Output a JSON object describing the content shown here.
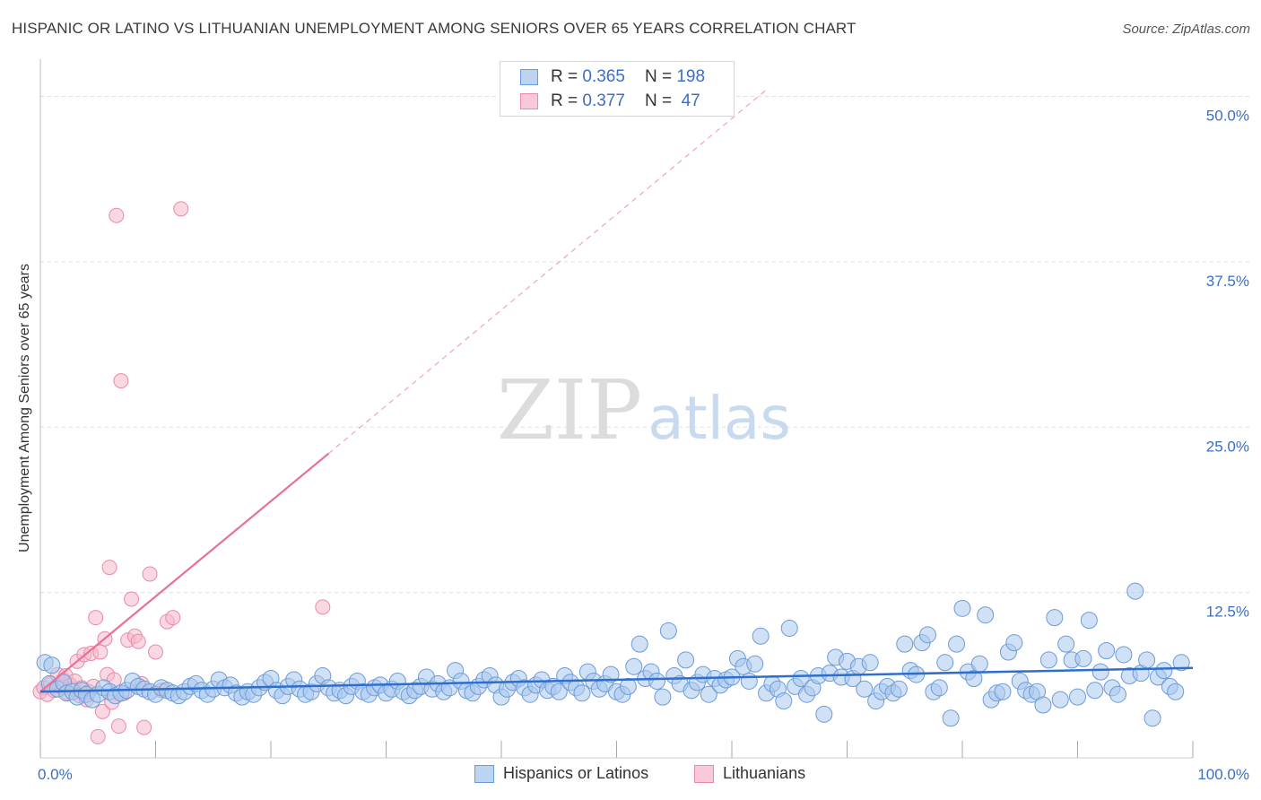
{
  "header": {
    "title": "HISPANIC OR LATINO VS LITHUANIAN UNEMPLOYMENT AMONG SENIORS OVER 65 YEARS CORRELATION CHART",
    "source": "Source: ZipAtlas.com"
  },
  "watermark": {
    "zip": "ZIP",
    "atlas": "atlas"
  },
  "legend_box": {
    "series1": {
      "r_label": "R =",
      "r_value": "0.365",
      "n_label": "N =",
      "n_value": "198"
    },
    "series2": {
      "r_label": "R =",
      "r_value": "0.377",
      "n_label": "N =",
      "n_value": "47"
    }
  },
  "bottom_legend": {
    "series1": "Hispanics or Latinos",
    "series2": "Lithuanians"
  },
  "colors": {
    "blue_fill": "#a9c8ef",
    "blue_stroke": "#6b9bd8",
    "blue_line": "#2f6fcc",
    "pink_fill": "#f6b8cb",
    "pink_stroke": "#e98aa8",
    "pink_line": "#e8709a",
    "grid": "#dddddd",
    "tick_label": "#3a6fc4"
  },
  "chart_data": {
    "type": "scatter",
    "title": "HISPANIC OR LATINO VS LITHUANIAN UNEMPLOYMENT AMONG SENIORS OVER 65 YEARS CORRELATION CHART",
    "xlabel": "",
    "ylabel": "Unemployment Among Seniors over 65 years",
    "xlim": [
      0,
      100
    ],
    "ylim": [
      0,
      52
    ],
    "x_tick_labels": [
      "0.0%",
      "100.0%"
    ],
    "y_ticks": [
      12.5,
      25.0,
      37.5,
      50.0
    ],
    "y_tick_labels": [
      "12.5%",
      "25.0%",
      "37.5%",
      "50.0%"
    ],
    "legend_position": "top-center",
    "series": [
      {
        "name": "Hispanics or Latinos",
        "R": 0.365,
        "N": 198,
        "trend": {
          "x": [
            0,
            100
          ],
          "y": [
            5.0,
            6.8
          ],
          "style": "solid"
        },
        "points": [
          [
            0.4,
            7.2
          ],
          [
            0.8,
            5.6
          ],
          [
            1.0,
            7.0
          ],
          [
            1.5,
            5.2
          ],
          [
            2.0,
            5.7
          ],
          [
            2.3,
            4.9
          ],
          [
            2.8,
            5.0
          ],
          [
            3.2,
            4.6
          ],
          [
            3.6,
            5.1
          ],
          [
            4.0,
            4.8
          ],
          [
            4.5,
            4.4
          ],
          [
            5.0,
            4.8
          ],
          [
            5.5,
            5.3
          ],
          [
            6.0,
            5.0
          ],
          [
            6.5,
            4.7
          ],
          [
            7.0,
            4.9
          ],
          [
            7.5,
            5.1
          ],
          [
            8.0,
            5.8
          ],
          [
            8.5,
            5.4
          ],
          [
            9.0,
            5.2
          ],
          [
            9.5,
            5.0
          ],
          [
            10.0,
            4.8
          ],
          [
            10.5,
            5.3
          ],
          [
            11.0,
            5.1
          ],
          [
            11.5,
            4.9
          ],
          [
            12.0,
            4.7
          ],
          [
            12.5,
            5.0
          ],
          [
            13.0,
            5.4
          ],
          [
            13.5,
            5.6
          ],
          [
            14.0,
            5.1
          ],
          [
            14.5,
            4.8
          ],
          [
            15.0,
            5.2
          ],
          [
            15.5,
            5.9
          ],
          [
            16.0,
            5.3
          ],
          [
            16.5,
            5.5
          ],
          [
            17.0,
            4.9
          ],
          [
            17.5,
            4.6
          ],
          [
            18.0,
            5.0
          ],
          [
            18.5,
            4.8
          ],
          [
            19.0,
            5.3
          ],
          [
            19.5,
            5.7
          ],
          [
            20.0,
            6.0
          ],
          [
            20.5,
            5.1
          ],
          [
            21.0,
            4.7
          ],
          [
            21.5,
            5.4
          ],
          [
            22.0,
            5.9
          ],
          [
            22.5,
            5.2
          ],
          [
            23.0,
            4.8
          ],
          [
            23.5,
            5.0
          ],
          [
            24.0,
            5.6
          ],
          [
            24.5,
            6.2
          ],
          [
            25.0,
            5.3
          ],
          [
            25.5,
            4.9
          ],
          [
            26.0,
            5.1
          ],
          [
            26.5,
            4.7
          ],
          [
            27.0,
            5.4
          ],
          [
            27.5,
            5.8
          ],
          [
            28.0,
            5.0
          ],
          [
            28.5,
            4.8
          ],
          [
            29.0,
            5.3
          ],
          [
            29.5,
            5.5
          ],
          [
            30.0,
            4.9
          ],
          [
            30.5,
            5.2
          ],
          [
            31.0,
            5.8
          ],
          [
            31.5,
            5.0
          ],
          [
            32.0,
            4.7
          ],
          [
            32.5,
            5.1
          ],
          [
            33.0,
            5.4
          ],
          [
            33.5,
            6.1
          ],
          [
            34.0,
            5.2
          ],
          [
            34.5,
            5.6
          ],
          [
            35.0,
            5.0
          ],
          [
            35.5,
            5.3
          ],
          [
            36.0,
            6.6
          ],
          [
            36.5,
            5.8
          ],
          [
            37.0,
            5.1
          ],
          [
            37.5,
            4.9
          ],
          [
            38.0,
            5.4
          ],
          [
            38.5,
            5.9
          ],
          [
            39.0,
            6.2
          ],
          [
            39.5,
            5.5
          ],
          [
            40.0,
            4.6
          ],
          [
            40.5,
            5.2
          ],
          [
            41.0,
            5.7
          ],
          [
            41.5,
            6.0
          ],
          [
            42.0,
            5.3
          ],
          [
            42.5,
            4.8
          ],
          [
            43.0,
            5.5
          ],
          [
            43.5,
            5.9
          ],
          [
            44.0,
            5.1
          ],
          [
            44.5,
            5.4
          ],
          [
            45.0,
            5.0
          ],
          [
            45.5,
            6.2
          ],
          [
            46.0,
            5.7
          ],
          [
            46.5,
            5.3
          ],
          [
            47.0,
            4.9
          ],
          [
            47.5,
            6.5
          ],
          [
            48.0,
            5.8
          ],
          [
            48.5,
            5.2
          ],
          [
            49.0,
            5.6
          ],
          [
            49.5,
            6.3
          ],
          [
            50.0,
            5.0
          ],
          [
            50.5,
            4.8
          ],
          [
            51.0,
            5.4
          ],
          [
            51.5,
            6.9
          ],
          [
            52.0,
            8.6
          ],
          [
            52.5,
            6.0
          ],
          [
            53.0,
            6.5
          ],
          [
            53.5,
            5.8
          ],
          [
            54.0,
            4.6
          ],
          [
            54.5,
            9.6
          ],
          [
            55.0,
            6.2
          ],
          [
            55.5,
            5.6
          ],
          [
            56.0,
            7.4
          ],
          [
            56.5,
            5.1
          ],
          [
            57.0,
            5.7
          ],
          [
            57.5,
            6.3
          ],
          [
            58.0,
            4.8
          ],
          [
            58.5,
            6.0
          ],
          [
            59.0,
            5.5
          ],
          [
            59.5,
            5.9
          ],
          [
            60.0,
            6.1
          ],
          [
            60.5,
            7.5
          ],
          [
            61.0,
            6.9
          ],
          [
            61.5,
            5.8
          ],
          [
            62.0,
            7.1
          ],
          [
            62.5,
            9.2
          ],
          [
            63.0,
            4.9
          ],
          [
            63.5,
            5.6
          ],
          [
            64.0,
            5.2
          ],
          [
            64.5,
            4.3
          ],
          [
            65.0,
            9.8
          ],
          [
            65.5,
            5.4
          ],
          [
            66.0,
            6.0
          ],
          [
            66.5,
            4.8
          ],
          [
            67.0,
            5.3
          ],
          [
            67.5,
            6.2
          ],
          [
            68.0,
            3.3
          ],
          [
            68.5,
            6.4
          ],
          [
            69.0,
            7.6
          ],
          [
            69.5,
            6.1
          ],
          [
            70.0,
            7.3
          ],
          [
            70.5,
            6.0
          ],
          [
            71.0,
            6.9
          ],
          [
            71.5,
            5.2
          ],
          [
            72.0,
            7.2
          ],
          [
            72.5,
            4.3
          ],
          [
            73.0,
            5.0
          ],
          [
            73.5,
            5.4
          ],
          [
            74.0,
            4.9
          ],
          [
            74.5,
            5.2
          ],
          [
            75.0,
            8.6
          ],
          [
            75.5,
            6.6
          ],
          [
            76.0,
            6.3
          ],
          [
            76.5,
            8.7
          ],
          [
            77.0,
            9.3
          ],
          [
            77.5,
            5.0
          ],
          [
            78.0,
            5.3
          ],
          [
            78.5,
            7.2
          ],
          [
            79.0,
            3.0
          ],
          [
            79.5,
            8.6
          ],
          [
            80.0,
            11.3
          ],
          [
            80.5,
            6.5
          ],
          [
            81.0,
            6.0
          ],
          [
            81.5,
            7.1
          ],
          [
            82.0,
            10.8
          ],
          [
            82.5,
            4.4
          ],
          [
            83.0,
            4.9
          ],
          [
            83.5,
            5.0
          ],
          [
            84.0,
            8.0
          ],
          [
            84.5,
            8.7
          ],
          [
            85.0,
            5.8
          ],
          [
            85.5,
            5.1
          ],
          [
            86.0,
            4.8
          ],
          [
            86.5,
            5.0
          ],
          [
            87.0,
            4.0
          ],
          [
            87.5,
            7.4
          ],
          [
            88.0,
            10.6
          ],
          [
            88.5,
            4.4
          ],
          [
            89.0,
            8.6
          ],
          [
            89.5,
            7.4
          ],
          [
            90.0,
            4.6
          ],
          [
            90.5,
            7.5
          ],
          [
            91.0,
            10.4
          ],
          [
            91.5,
            5.1
          ],
          [
            92.0,
            6.5
          ],
          [
            92.5,
            8.1
          ],
          [
            93.0,
            5.3
          ],
          [
            93.5,
            4.8
          ],
          [
            94.0,
            7.8
          ],
          [
            94.5,
            6.2
          ],
          [
            95.0,
            12.6
          ],
          [
            95.5,
            6.4
          ],
          [
            96.0,
            7.4
          ],
          [
            96.5,
            3.0
          ],
          [
            97.0,
            6.1
          ],
          [
            97.5,
            6.6
          ],
          [
            98.0,
            5.4
          ],
          [
            98.5,
            5.0
          ],
          [
            99.0,
            7.2
          ]
        ]
      },
      {
        "name": "Lithuanians",
        "R": 0.377,
        "N": 47,
        "trend": {
          "x": [
            0,
            25
          ],
          "y": [
            5.0,
            23.0
          ],
          "style": "solid",
          "extension": {
            "x": [
              25,
              63
            ],
            "y": [
              23.0,
              50.5
            ],
            "style": "dashed"
          }
        },
        "points": [
          [
            0.0,
            5.0
          ],
          [
            0.3,
            5.3
          ],
          [
            0.6,
            4.8
          ],
          [
            0.9,
            5.6
          ],
          [
            1.2,
            5.1
          ],
          [
            1.5,
            6.3
          ],
          [
            1.7,
            5.4
          ],
          [
            2.0,
            5.9
          ],
          [
            2.2,
            6.2
          ],
          [
            2.4,
            4.9
          ],
          [
            2.6,
            5.5
          ],
          [
            2.8,
            5.2
          ],
          [
            3.0,
            5.8
          ],
          [
            3.2,
            7.3
          ],
          [
            3.4,
            4.7
          ],
          [
            3.6,
            5.3
          ],
          [
            3.8,
            7.8
          ],
          [
            4.0,
            4.4
          ],
          [
            4.2,
            5.0
          ],
          [
            4.4,
            7.9
          ],
          [
            4.6,
            5.4
          ],
          [
            4.8,
            10.6
          ],
          [
            5.0,
            1.6
          ],
          [
            5.2,
            8.0
          ],
          [
            5.4,
            3.5
          ],
          [
            5.6,
            9.0
          ],
          [
            5.8,
            6.3
          ],
          [
            6.0,
            14.4
          ],
          [
            6.2,
            4.2
          ],
          [
            6.4,
            5.9
          ],
          [
            6.6,
            41.0
          ],
          [
            6.8,
            2.4
          ],
          [
            7.0,
            28.5
          ],
          [
            7.3,
            4.9
          ],
          [
            7.6,
            8.9
          ],
          [
            7.9,
            12.0
          ],
          [
            8.2,
            9.2
          ],
          [
            8.5,
            8.8
          ],
          [
            8.8,
            5.6
          ],
          [
            9.0,
            2.3
          ],
          [
            9.5,
            13.9
          ],
          [
            10.0,
            8.0
          ],
          [
            10.5,
            5.1
          ],
          [
            11.0,
            10.3
          ],
          [
            11.5,
            10.6
          ],
          [
            12.2,
            41.5
          ],
          [
            24.5,
            11.4
          ]
        ]
      }
    ]
  }
}
